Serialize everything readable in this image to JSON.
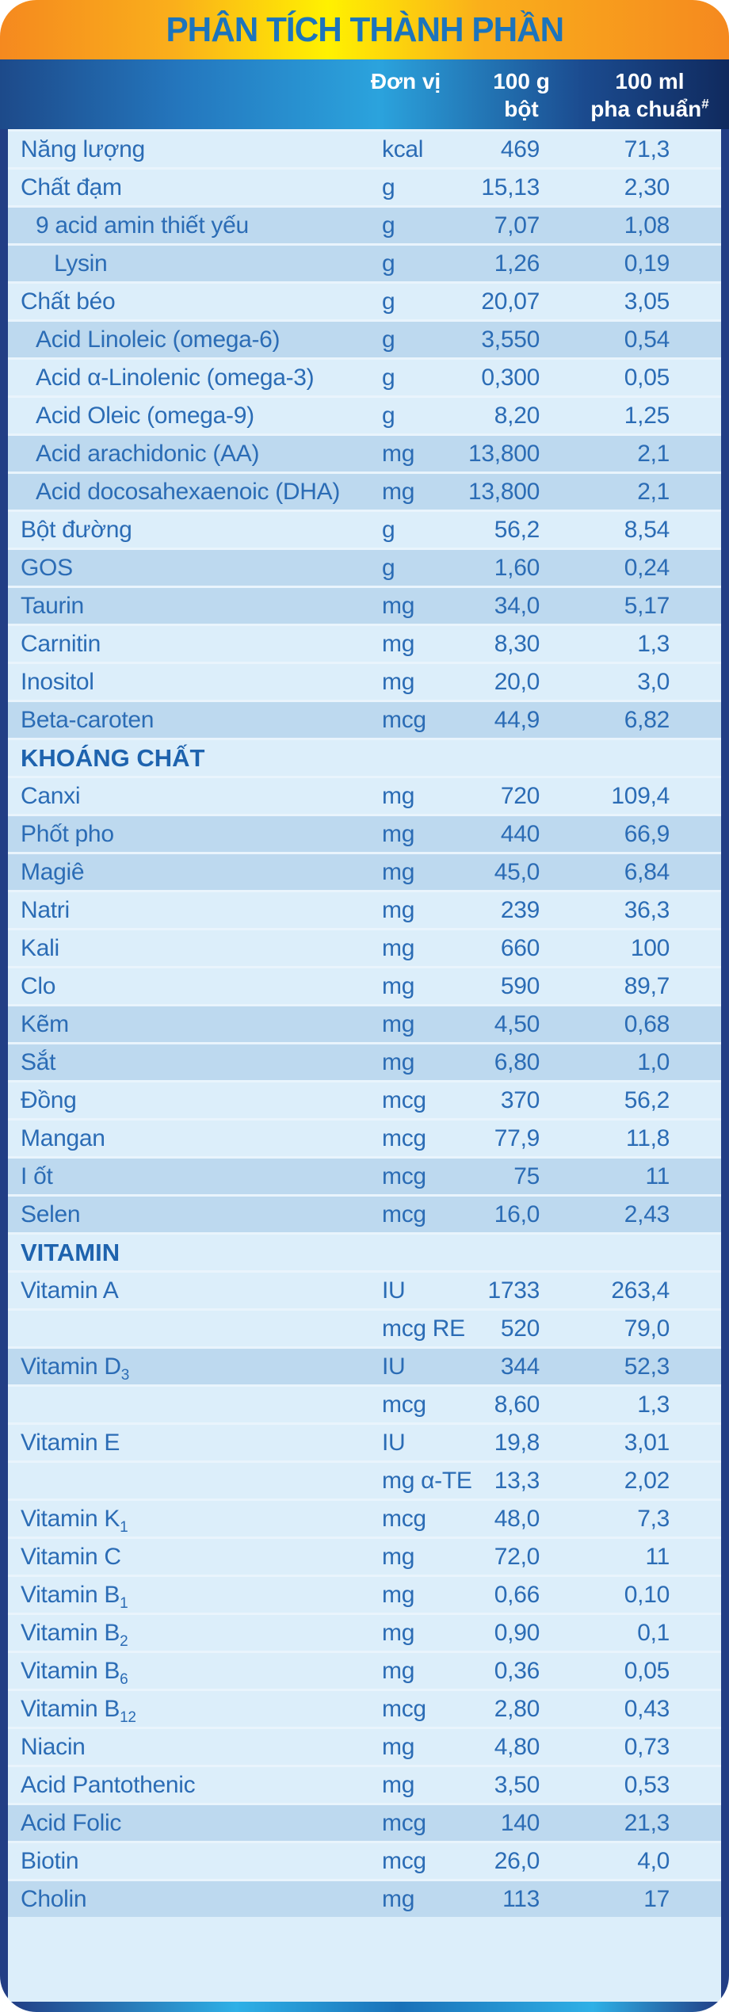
{
  "title": "PHÂN TÍCH THÀNH PHẦN",
  "columns": {
    "unit": "Đơn vị",
    "per100g_line1": "100 g",
    "per100g_line2": "bột",
    "per100ml_line1": "100 ml",
    "per100ml_line2": "pha chuẩn",
    "per100ml_sup": "#"
  },
  "colors": {
    "orange": "#F5891F",
    "orange_mid": "#FAAF1B",
    "yellow": "#FFF100",
    "title_blue": "#1C74BC",
    "header_navy_left": "#1D4A8A",
    "header_cyan": "#2BA3DD",
    "header_navy_right": "#102A5E",
    "frame": "#223E85",
    "row_light": "#DCEEFA",
    "row_dark": "#BDD9EF",
    "row_gap": "#E9F4FC",
    "text_blue": "#2B6CB5",
    "text_blue_bold": "#1E63AE",
    "band_cyan": "#2FB0E6",
    "band_mid": "#1A71B8"
  },
  "rows": [
    {
      "label": "Năng lượng",
      "unit": "kcal",
      "v100g": "469",
      "v100ml": "71,3",
      "indent": 0,
      "stripe": "light"
    },
    {
      "label": "Chất đạm",
      "unit": "g",
      "v100g": "15,13",
      "v100ml": "2,30",
      "indent": 0,
      "stripe": "light"
    },
    {
      "label": "9 acid amin thiết yếu",
      "unit": "g",
      "v100g": "7,07",
      "v100ml": "1,08",
      "indent": 1,
      "stripe": "dark"
    },
    {
      "label": "Lysin",
      "unit": "g",
      "v100g": "1,26",
      "v100ml": "0,19",
      "indent": 2,
      "stripe": "dark"
    },
    {
      "label": "Chất béo",
      "unit": "g",
      "v100g": "20,07",
      "v100ml": "3,05",
      "indent": 0,
      "stripe": "light"
    },
    {
      "label": "Acid Linoleic (omega-6)",
      "unit": "g",
      "v100g": "3,550",
      "v100ml": "0,54",
      "indent": 1,
      "stripe": "dark"
    },
    {
      "label": "Acid α-Linolenic (omega-3)",
      "unit": "g",
      "v100g": "0,300",
      "v100ml": "0,05",
      "indent": 1,
      "stripe": "light"
    },
    {
      "label": "Acid Oleic (omega-9)",
      "unit": "g",
      "v100g": "8,20",
      "v100ml": "1,25",
      "indent": 1,
      "stripe": "light"
    },
    {
      "label": "Acid arachidonic (AA)",
      "unit": "mg",
      "v100g": "13,800",
      "v100ml": "2,1",
      "indent": 1,
      "stripe": "dark"
    },
    {
      "label": "Acid docosahexaenoic (DHA)",
      "unit": "mg",
      "v100g": "13,800",
      "v100ml": "2,1",
      "indent": 1,
      "stripe": "dark"
    },
    {
      "label": "Bột đường",
      "unit": "g",
      "v100g": "56,2",
      "v100ml": "8,54",
      "indent": 0,
      "stripe": "light"
    },
    {
      "label": "GOS",
      "unit": "g",
      "v100g": "1,60",
      "v100ml": "0,24",
      "indent": 0,
      "stripe": "dark"
    },
    {
      "label": "Taurin",
      "unit": "mg",
      "v100g": "34,0",
      "v100ml": "5,17",
      "indent": 0,
      "stripe": "dark"
    },
    {
      "label": "Carnitin",
      "unit": "mg",
      "v100g": "8,30",
      "v100ml": "1,3",
      "indent": 0,
      "stripe": "light"
    },
    {
      "label": "Inositol",
      "unit": "mg",
      "v100g": "20,0",
      "v100ml": "3,0",
      "indent": 0,
      "stripe": "light"
    },
    {
      "label": "Beta-caroten",
      "unit": "mcg",
      "v100g": "44,9",
      "v100ml": "6,82",
      "indent": 0,
      "stripe": "dark"
    },
    {
      "label": "KHOÁNG CHẤT",
      "type": "section",
      "stripe": "light"
    },
    {
      "label": "Canxi",
      "unit": "mg",
      "v100g": "720",
      "v100ml": "109,4",
      "indent": 0,
      "stripe": "light"
    },
    {
      "label": "Phốt pho",
      "unit": "mg",
      "v100g": "440",
      "v100ml": "66,9",
      "indent": 0,
      "stripe": "dark"
    },
    {
      "label": "Magiê",
      "unit": "mg",
      "v100g": "45,0",
      "v100ml": "6,84",
      "indent": 0,
      "stripe": "dark"
    },
    {
      "label": "Natri",
      "unit": "mg",
      "v100g": "239",
      "v100ml": "36,3",
      "indent": 0,
      "stripe": "light"
    },
    {
      "label": "Kali",
      "unit": "mg",
      "v100g": "660",
      "v100ml": "100",
      "indent": 0,
      "stripe": "light"
    },
    {
      "label": "Clo",
      "unit": "mg",
      "v100g": "590",
      "v100ml": "89,7",
      "indent": 0,
      "stripe": "light"
    },
    {
      "label": "Kẽm",
      "unit": "mg",
      "v100g": "4,50",
      "v100ml": "0,68",
      "indent": 0,
      "stripe": "dark"
    },
    {
      "label": "Sắt",
      "unit": "mg",
      "v100g": "6,80",
      "v100ml": "1,0",
      "indent": 0,
      "stripe": "dark"
    },
    {
      "label": "Đồng",
      "unit": "mcg",
      "v100g": "370",
      "v100ml": "56,2",
      "indent": 0,
      "stripe": "light"
    },
    {
      "label": "Mangan",
      "unit": "mcg",
      "v100g": "77,9",
      "v100ml": "11,8",
      "indent": 0,
      "stripe": "light"
    },
    {
      "label": "I ốt",
      "unit": "mcg",
      "v100g": "75",
      "v100ml": "11",
      "indent": 0,
      "stripe": "dark"
    },
    {
      "label": "Selen",
      "unit": "mcg",
      "v100g": "16,0",
      "v100ml": "2,43",
      "indent": 0,
      "stripe": "dark"
    },
    {
      "label": "VITAMIN",
      "type": "section",
      "stripe": "light"
    },
    {
      "label": "Vitamin A",
      "unit": "IU",
      "v100g": "1733",
      "v100ml": "263,4",
      "indent": 0,
      "stripe": "light"
    },
    {
      "label": "",
      "unit": "mcg RE",
      "v100g": "520",
      "v100ml": "79,0",
      "indent": 0,
      "stripe": "light"
    },
    {
      "label": "Vitamin D",
      "sub": "3",
      "unit": "IU",
      "v100g": "344",
      "v100ml": "52,3",
      "indent": 0,
      "stripe": "dark"
    },
    {
      "label": "",
      "unit": "mcg",
      "v100g": "8,60",
      "v100ml": "1,3",
      "indent": 0,
      "stripe": "light"
    },
    {
      "label": "Vitamin E",
      "unit": "IU",
      "v100g": "19,8",
      "v100ml": "3,01",
      "indent": 0,
      "stripe": "light"
    },
    {
      "label": "",
      "unit": "mg α-TE",
      "v100g": "13,3",
      "v100ml": "2,02",
      "indent": 0,
      "stripe": "light"
    },
    {
      "label": "Vitamin K",
      "sub": "1",
      "unit": "mcg",
      "v100g": "48,0",
      "v100ml": "7,3",
      "indent": 0,
      "stripe": "light"
    },
    {
      "label": "Vitamin C",
      "unit": "mg",
      "v100g": "72,0",
      "v100ml": "11",
      "indent": 0,
      "stripe": "light"
    },
    {
      "label": "Vitamin B",
      "sub": "1",
      "unit": "mg",
      "v100g": "0,66",
      "v100ml": "0,10",
      "indent": 0,
      "stripe": "light"
    },
    {
      "label": "Vitamin B",
      "sub": "2",
      "unit": "mg",
      "v100g": "0,90",
      "v100ml": "0,1",
      "indent": 0,
      "stripe": "light"
    },
    {
      "label": "Vitamin B",
      "sub": "6",
      "unit": "mg",
      "v100g": "0,36",
      "v100ml": "0,05",
      "indent": 0,
      "stripe": "light"
    },
    {
      "label": "Vitamin B",
      "sub": "12",
      "unit": "mcg",
      "v100g": "2,80",
      "v100ml": "0,43",
      "indent": 0,
      "stripe": "light"
    },
    {
      "label": "Niacin",
      "unit": "mg",
      "v100g": "4,80",
      "v100ml": "0,73",
      "indent": 0,
      "stripe": "light"
    },
    {
      "label": "Acid Pantothenic",
      "unit": "mg",
      "v100g": "3,50",
      "v100ml": "0,53",
      "indent": 0,
      "stripe": "light"
    },
    {
      "label": "Acid Folic",
      "unit": "mcg",
      "v100g": "140",
      "v100ml": "21,3",
      "indent": 0,
      "stripe": "dark"
    },
    {
      "label": "Biotin",
      "unit": "mcg",
      "v100g": "26,0",
      "v100ml": "4,0",
      "indent": 0,
      "stripe": "light"
    },
    {
      "label": "Cholin",
      "unit": "mg",
      "v100g": "113",
      "v100ml": "17",
      "indent": 0,
      "stripe": "dark"
    }
  ]
}
